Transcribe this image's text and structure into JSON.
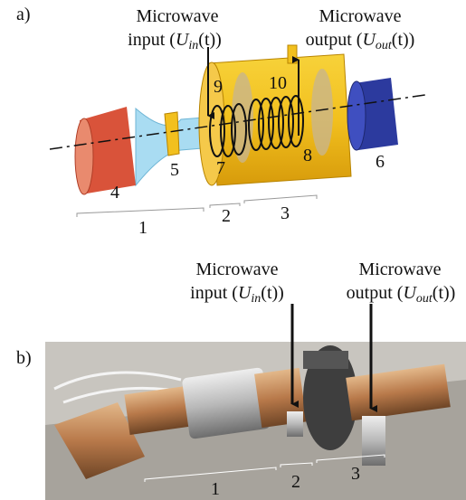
{
  "panel_a": {
    "label": "a)",
    "input_label": {
      "line1": "Microwave",
      "prefix": "input (",
      "symbol": "U",
      "subscript": "in",
      "suffix": "(t))"
    },
    "output_label": {
      "line1": "Microwave",
      "prefix": "output (",
      "symbol": "U",
      "subscript": "out",
      "suffix": "(t))"
    },
    "part_numbers": [
      "1",
      "2",
      "3",
      "4",
      "5",
      "6",
      "7",
      "8",
      "9",
      "10"
    ]
  },
  "panel_b": {
    "label": "b)",
    "input_label": {
      "line1": "Microwave",
      "prefix": "input (",
      "symbol": "U",
      "subscript": "in",
      "suffix": "(t))"
    },
    "output_label": {
      "line1": "Microwave",
      "prefix": "output (",
      "symbol": "U",
      "subscript": "out",
      "suffix": "(t))"
    },
    "section_numbers": [
      "1",
      "2",
      "3"
    ]
  }
}
